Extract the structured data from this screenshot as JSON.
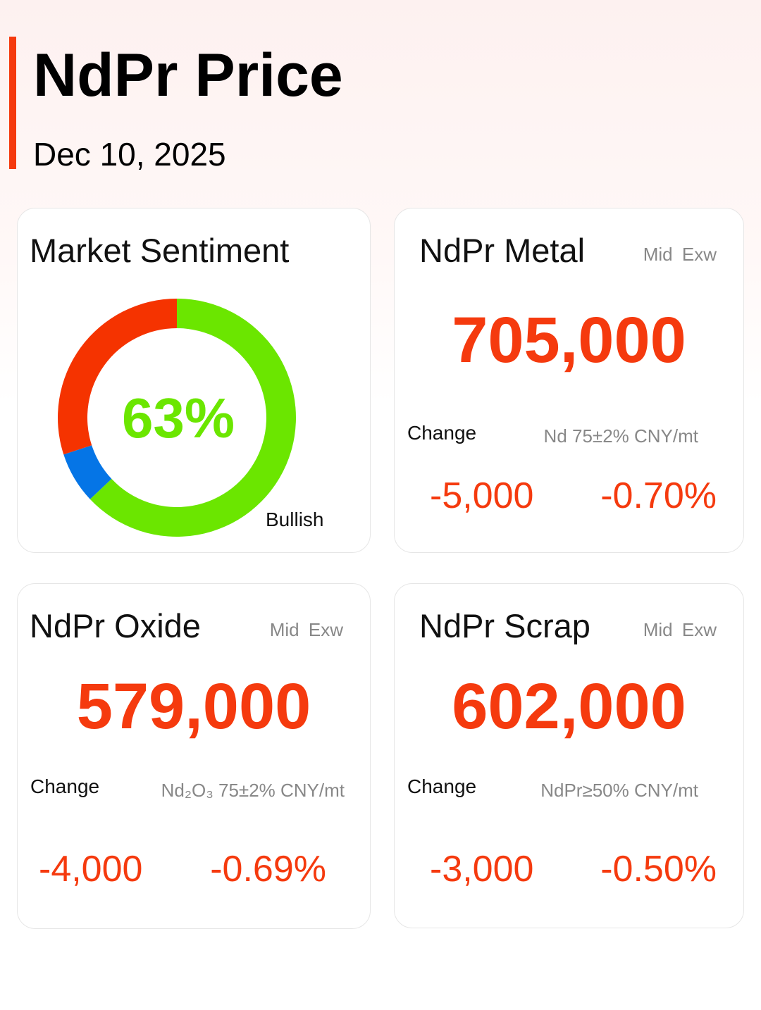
{
  "header": {
    "title": "NdPr Price",
    "date": "Dec 10, 2025"
  },
  "sentiment": {
    "title": "Market Sentiment",
    "value_label": "63%",
    "label": "Bullish"
  },
  "chart_data": {
    "type": "pie",
    "title": "Market Sentiment",
    "values": [
      63,
      7,
      30
    ],
    "colors": [
      "#6be600",
      "#0575e6",
      "#f53300"
    ],
    "annotations": [
      "63%",
      "Bullish"
    ]
  },
  "cards": [
    {
      "title": "NdPr Metal",
      "tag": "Mid  Exw",
      "price": "705,000",
      "change_label": "Change",
      "spec": "Nd 75±2% CNY/mt",
      "change": "-5,000",
      "change_pct": "-0.70%"
    },
    {
      "title": "NdPr Oxide",
      "tag": "Mid  Exw",
      "price": "579,000",
      "change_label": "Change",
      "spec": "Nd₂O₃ 75±2% CNY/mt",
      "change": "-4,000",
      "change_pct": "-0.69%"
    },
    {
      "title": "NdPr Scrap",
      "tag": "Mid  Exw",
      "price": "602,000",
      "change_label": "Change",
      "spec": "NdPr≥50% CNY/mt",
      "change": "-3,000",
      "change_pct": "-0.50%"
    }
  ],
  "colors": {
    "accent": "#f53a0e",
    "bullish": "#6be600"
  }
}
